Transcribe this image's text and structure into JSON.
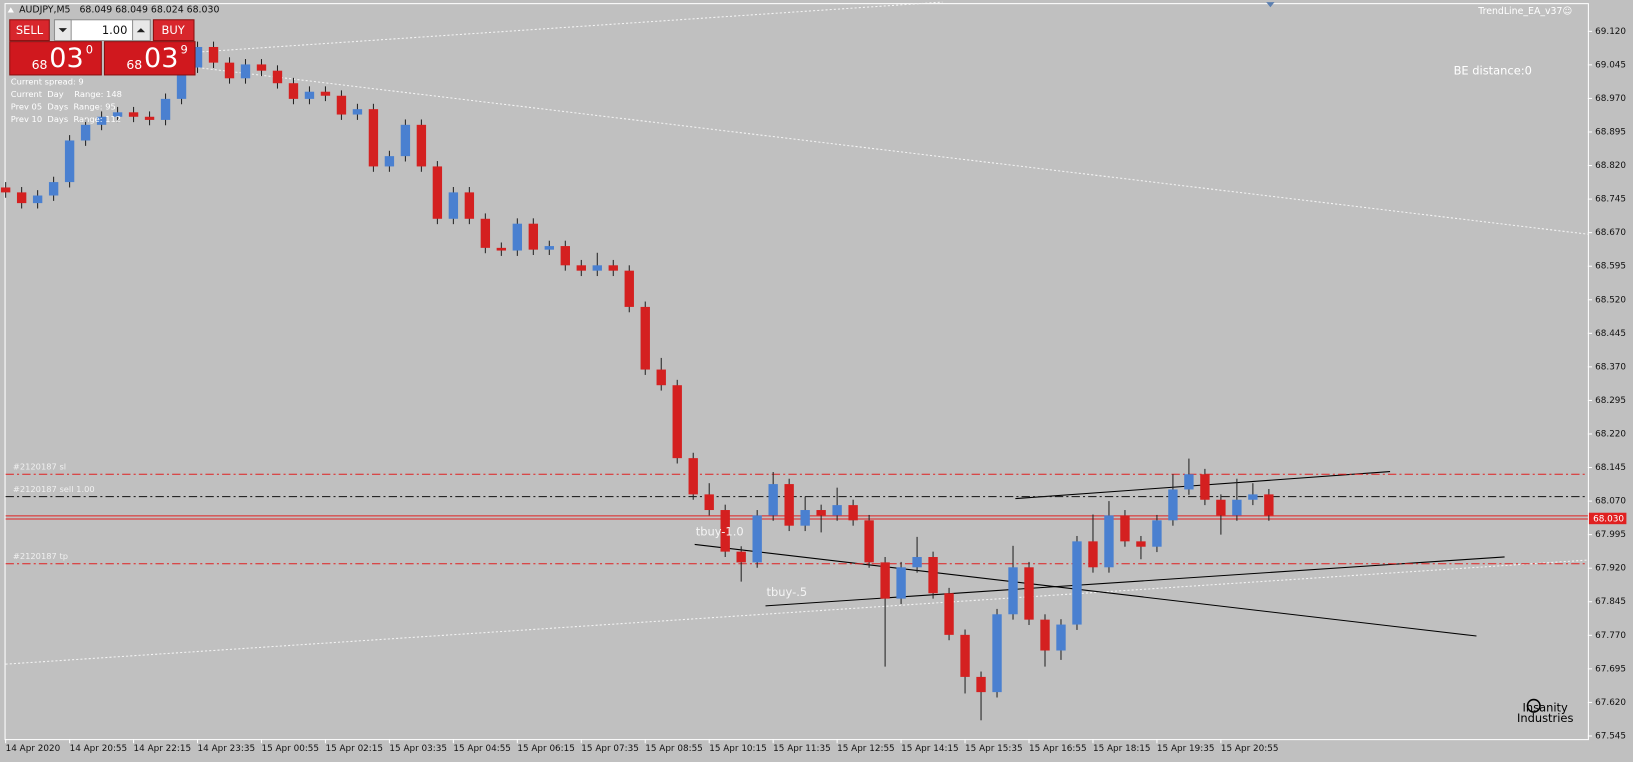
{
  "symbol_bar": {
    "title": "AUDJPY,M5",
    "quote": "68.049 68.049 68.024 68.030"
  },
  "trade_panel": {
    "sell": "SELL",
    "buy": "BUY",
    "lot": "1.00",
    "bid": {
      "big": "68",
      "main": "03",
      "small": "0"
    },
    "ask": {
      "big": "68",
      "main": "03",
      "small": "9"
    }
  },
  "info": [
    "Current spread: 9",
    "Current  Day    Range: 148",
    "Prev 05  Days  Range: 95",
    "Prev 10  Days  Range: 112"
  ],
  "ea_name": "TrendLine_EA_v37☺",
  "be_distance": "BE distance:0",
  "logo": [
    "Insanity",
    "Industries"
  ],
  "chart_data": {
    "type": "candlestick",
    "up_color": "#4a80d0",
    "down_color": "#d42020",
    "xlim": [
      -0.33,
      98.95
    ],
    "ylim": [
      67.538,
      69.19
    ],
    "yticks": [
      {
        "value": 69.12,
        "label": "69.120"
      },
      69.045,
      {
        "value": 68.97,
        "label": "68.970"
      },
      68.895,
      {
        "value": 68.82,
        "label": "68.820"
      },
      68.745,
      {
        "value": 68.67,
        "label": "68.670"
      },
      68.595,
      {
        "value": 68.52,
        "label": "68.520"
      },
      68.445,
      {
        "value": 68.37,
        "label": "68.370"
      },
      68.295,
      {
        "value": 68.22,
        "label": "68.220"
      },
      68.145,
      {
        "value": 68.07,
        "label": "68.070"
      },
      67.995,
      {
        "value": 67.92,
        "label": "67.920"
      },
      67.845,
      {
        "value": 67.77,
        "label": "67.770"
      },
      67.695,
      {
        "value": 67.62,
        "label": "67.620"
      },
      67.545
    ],
    "xticks": [
      {
        "value": 0,
        "label": "14 Apr 2020"
      },
      {
        "value": 4,
        "label": "14 Apr 20:55"
      },
      {
        "value": 8,
        "label": "14 Apr 22:15"
      },
      {
        "value": 12,
        "label": "14 Apr 23:35"
      },
      {
        "value": 16,
        "label": "15 Apr 00:55"
      },
      {
        "value": 20,
        "label": "15 Apr 02:15"
      },
      {
        "value": 24,
        "label": "15 Apr 03:35"
      },
      {
        "value": 28,
        "label": "15 Apr 04:55"
      },
      {
        "value": 32,
        "label": "15 Apr 06:15"
      },
      {
        "value": 36,
        "label": "15 Apr 07:35"
      },
      {
        "value": 40,
        "label": "15 Apr 08:55"
      },
      {
        "value": 44,
        "label": "15 Apr 10:15"
      },
      {
        "value": 48,
        "label": "15 Apr 11:35"
      },
      {
        "value": 52,
        "label": "15 Apr 12:55"
      },
      {
        "value": 56,
        "label": "15 Apr 14:15"
      },
      {
        "value": 60,
        "label": "15 Apr 15:35"
      },
      {
        "value": 64,
        "label": "15 Apr 16:55"
      },
      {
        "value": 68,
        "label": "15 Apr 18:15"
      },
      {
        "value": 72,
        "label": "15 Apr 19:35"
      },
      {
        "value": 76,
        "label": "15 Apr 20:55"
      }
    ],
    "candles": [
      [
        68.771,
        68.783,
        68.748,
        68.76
      ],
      [
        68.76,
        68.772,
        68.724,
        68.736
      ],
      [
        68.736,
        68.765,
        68.724,
        68.753
      ],
      [
        68.753,
        68.795,
        68.741,
        68.783
      ],
      [
        68.783,
        68.888,
        68.771,
        68.876
      ],
      [
        68.876,
        68.923,
        68.864,
        68.911
      ],
      [
        68.911,
        68.941,
        68.899,
        68.929
      ],
      [
        68.929,
        68.951,
        68.917,
        68.939
      ],
      [
        68.939,
        68.951,
        68.917,
        68.929
      ],
      [
        68.929,
        68.941,
        68.91,
        68.922
      ],
      [
        68.922,
        68.981,
        68.91,
        68.969
      ],
      [
        68.969,
        69.051,
        68.957,
        69.039
      ],
      [
        69.039,
        69.097,
        69.027,
        69.085
      ],
      [
        69.085,
        69.097,
        69.038,
        69.05
      ],
      [
        69.05,
        69.062,
        69.003,
        69.015
      ],
      [
        69.015,
        69.058,
        69.003,
        69.046
      ],
      [
        69.046,
        69.058,
        69.02,
        69.032
      ],
      [
        69.032,
        69.044,
        68.992,
        69.004
      ],
      [
        69.004,
        69.016,
        68.957,
        68.969
      ],
      [
        68.969,
        68.997,
        68.957,
        68.985
      ],
      [
        68.985,
        68.997,
        68.964,
        68.976
      ],
      [
        68.976,
        68.988,
        68.922,
        68.934
      ],
      [
        68.934,
        68.958,
        68.922,
        68.946
      ],
      [
        68.946,
        68.958,
        68.806,
        68.818
      ],
      [
        68.818,
        68.853,
        68.806,
        68.841
      ],
      [
        68.841,
        68.923,
        68.829,
        68.911
      ],
      [
        68.911,
        68.923,
        68.806,
        68.818
      ],
      [
        68.818,
        68.83,
        68.689,
        68.701
      ],
      [
        68.701,
        68.772,
        68.689,
        68.76
      ],
      [
        68.76,
        68.772,
        68.689,
        68.701
      ],
      [
        68.701,
        68.713,
        68.624,
        68.636
      ],
      [
        68.636,
        68.648,
        68.618,
        68.63
      ],
      [
        68.63,
        68.702,
        68.618,
        68.69
      ],
      [
        68.69,
        68.702,
        68.62,
        68.632
      ],
      [
        68.632,
        68.652,
        68.62,
        68.64
      ],
      [
        68.64,
        68.652,
        68.585,
        68.597
      ],
      [
        68.597,
        68.609,
        68.573,
        68.585
      ],
      [
        68.585,
        68.625,
        68.573,
        68.597
      ],
      [
        68.597,
        68.609,
        68.573,
        68.585
      ],
      [
        68.585,
        68.597,
        68.492,
        68.504
      ],
      [
        68.504,
        68.516,
        68.352,
        68.364
      ],
      [
        68.364,
        68.39,
        68.317,
        68.329
      ],
      [
        68.329,
        68.341,
        68.154,
        68.166
      ],
      [
        68.166,
        68.178,
        68.073,
        68.085
      ],
      [
        68.085,
        68.11,
        68.038,
        68.05
      ],
      [
        68.05,
        68.062,
        67.945,
        67.957
      ],
      [
        67.957,
        67.969,
        67.89,
        67.933
      ],
      [
        67.933,
        68.05,
        67.921,
        68.038
      ],
      [
        68.038,
        68.135,
        68.026,
        68.108
      ],
      [
        68.108,
        68.12,
        68.003,
        68.015
      ],
      [
        68.015,
        68.08,
        68.003,
        68.05
      ],
      [
        68.05,
        68.062,
        68.0,
        68.038
      ],
      [
        68.038,
        68.1,
        68.026,
        68.061
      ],
      [
        68.061,
        68.073,
        68.015,
        68.027
      ],
      [
        68.027,
        68.039,
        67.921,
        67.933
      ],
      [
        67.933,
        67.945,
        67.7,
        67.852
      ],
      [
        67.852,
        67.934,
        67.84,
        67.922
      ],
      [
        67.922,
        67.99,
        67.91,
        67.945
      ],
      [
        67.945,
        67.957,
        67.852,
        67.864
      ],
      [
        67.864,
        67.876,
        67.759,
        67.771
      ],
      [
        67.771,
        67.783,
        67.64,
        67.677
      ],
      [
        67.677,
        67.689,
        67.58,
        67.643
      ],
      [
        67.643,
        67.829,
        67.631,
        67.817
      ],
      [
        67.817,
        67.97,
        67.805,
        67.922
      ],
      [
        67.922,
        67.934,
        67.793,
        67.805
      ],
      [
        67.805,
        67.817,
        67.7,
        67.736
      ],
      [
        67.736,
        67.806,
        67.715,
        67.794
      ],
      [
        67.794,
        67.992,
        67.782,
        67.98
      ],
      [
        67.98,
        68.04,
        67.91,
        67.922
      ],
      [
        67.922,
        68.07,
        67.91,
        68.038
      ],
      [
        68.038,
        68.05,
        67.968,
        67.98
      ],
      [
        67.98,
        67.992,
        67.94,
        67.968
      ],
      [
        67.968,
        68.039,
        67.956,
        68.027
      ],
      [
        68.027,
        68.13,
        68.015,
        68.096
      ],
      [
        68.096,
        68.165,
        68.084,
        68.13
      ],
      [
        68.13,
        68.142,
        68.061,
        68.073
      ],
      [
        68.073,
        68.085,
        67.995,
        68.038
      ],
      [
        68.038,
        68.12,
        68.026,
        68.073
      ],
      [
        68.073,
        68.11,
        68.061,
        68.085
      ],
      [
        68.085,
        68.097,
        68.026,
        68.038
      ]
    ],
    "levels": [
      {
        "name": "#2120187 sl",
        "value": 68.13,
        "color": "#e02020"
      },
      {
        "name": "#2120187 sell 1.00",
        "value": 68.08,
        "color": "#101010"
      },
      {
        "name": "#2120187 tp",
        "value": 67.93,
        "color": "#e02020"
      }
    ],
    "current_price": {
      "value": 68.03,
      "label": "68.030",
      "color": "#e02020"
    },
    "annotations": [
      "tbuy-1.0",
      "tbuy-.5"
    ]
  }
}
